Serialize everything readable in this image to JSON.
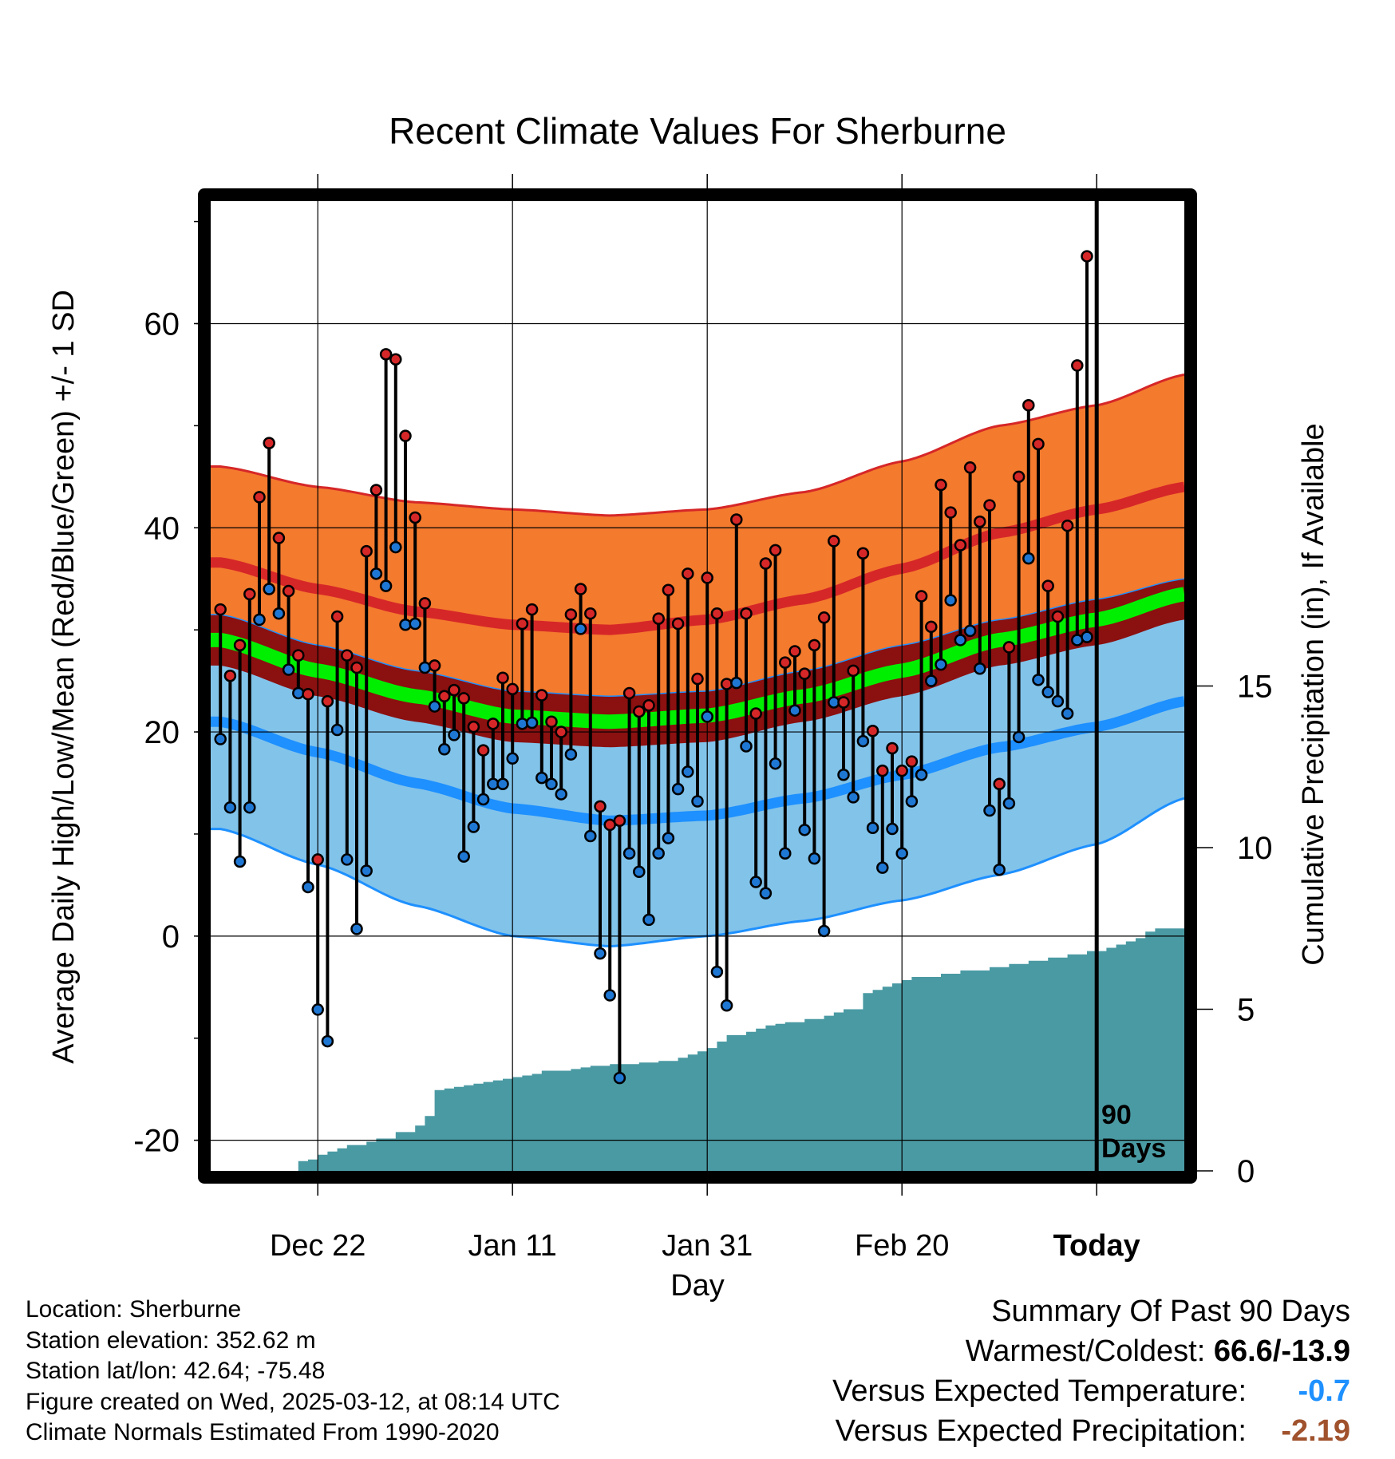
{
  "chart_data": {
    "type": "line",
    "title": "Recent Climate Values For Sherburne",
    "xlabel": "Day",
    "ylabel": "Average Daily High/Low/Mean (Red/Blue/Green) +/- 1 SD",
    "y2label": "Cumulative Precipitation (in), If Available",
    "x_tick_labels": [
      "Dec 22",
      "Jan 11",
      "Jan 31",
      "Feb 20",
      "Today"
    ],
    "x_tick_days": [
      10,
      30,
      50,
      70,
      90
    ],
    "xlim": [
      -1,
      99
    ],
    "ylim": [
      -23,
      72
    ],
    "y_ticks": [
      -20,
      0,
      20,
      40,
      60
    ],
    "y2lim": [
      0,
      30
    ],
    "y2_ticks": [
      0,
      5,
      10,
      15
    ],
    "grid": true,
    "today_marker": {
      "day": 90,
      "label_line1": "90",
      "label_line2": "Days"
    },
    "normals": {
      "high_mean": [
        [
          0,
          36.6
        ],
        [
          10,
          34.0
        ],
        [
          20,
          31.8
        ],
        [
          30,
          30.5
        ],
        [
          40,
          30.0
        ],
        [
          50,
          31.0
        ],
        [
          60,
          33.0
        ],
        [
          70,
          36.0
        ],
        [
          80,
          39.5
        ],
        [
          90,
          41.8
        ],
        [
          99,
          44.0
        ]
      ],
      "high_upper": [
        [
          0,
          46.0
        ],
        [
          10,
          44.0
        ],
        [
          20,
          42.5
        ],
        [
          30,
          41.8
        ],
        [
          40,
          41.2
        ],
        [
          50,
          41.8
        ],
        [
          60,
          43.5
        ],
        [
          70,
          46.5
        ],
        [
          80,
          50.0
        ],
        [
          90,
          52.0
        ],
        [
          99,
          55.0
        ]
      ],
      "mean": [
        [
          0,
          29.0
        ],
        [
          10,
          26.0
        ],
        [
          20,
          23.5
        ],
        [
          30,
          21.5
        ],
        [
          40,
          21.0
        ],
        [
          50,
          21.6
        ],
        [
          60,
          23.5
        ],
        [
          70,
          26.0
        ],
        [
          80,
          29.0
        ],
        [
          90,
          31.0
        ],
        [
          99,
          33.5
        ]
      ],
      "mean_upper": [
        [
          0,
          31.5
        ],
        [
          10,
          28.5
        ],
        [
          20,
          26.0
        ],
        [
          30,
          24.0
        ],
        [
          40,
          23.5
        ],
        [
          50,
          24.0
        ],
        [
          60,
          26.0
        ],
        [
          70,
          28.5
        ],
        [
          80,
          31.0
        ],
        [
          90,
          33.0
        ],
        [
          99,
          35.0
        ]
      ],
      "mean_lower": [
        [
          0,
          26.5
        ],
        [
          10,
          23.5
        ],
        [
          20,
          21.0
        ],
        [
          30,
          19.0
        ],
        [
          40,
          18.5
        ],
        [
          50,
          19.0
        ],
        [
          60,
          21.0
        ],
        [
          70,
          23.5
        ],
        [
          80,
          26.5
        ],
        [
          90,
          28.5
        ],
        [
          99,
          31.0
        ]
      ],
      "low_mean": [
        [
          0,
          21.0
        ],
        [
          10,
          18.0
        ],
        [
          20,
          15.0
        ],
        [
          30,
          12.5
        ],
        [
          40,
          11.3
        ],
        [
          50,
          11.8
        ],
        [
          60,
          13.5
        ],
        [
          70,
          15.8
        ],
        [
          80,
          18.5
        ],
        [
          90,
          20.5
        ],
        [
          99,
          23.0
        ]
      ],
      "low_lower": [
        [
          0,
          10.5
        ],
        [
          10,
          7.0
        ],
        [
          20,
          3.0
        ],
        [
          30,
          0.0
        ],
        [
          40,
          -1.0
        ],
        [
          50,
          0.0
        ],
        [
          60,
          1.5
        ],
        [
          70,
          3.5
        ],
        [
          80,
          6.0
        ],
        [
          90,
          9.0
        ],
        [
          99,
          13.5
        ]
      ]
    },
    "series": [
      {
        "name": "High",
        "color": "#d62728",
        "values": [
          32.0,
          25.5,
          28.5,
          33.5,
          43.0,
          48.3,
          39.0,
          33.8,
          27.5,
          23.7,
          7.5,
          23.0,
          31.3,
          27.5,
          26.3,
          37.7,
          43.7,
          57.0,
          56.5,
          49.0,
          41.0,
          32.6,
          26.5,
          23.5,
          24.1,
          23.3,
          20.5,
          18.2,
          20.8,
          25.3,
          24.2,
          30.6,
          32.0,
          23.6,
          21.0,
          20.0,
          31.5,
          34.0,
          31.6,
          12.7,
          10.9,
          11.3,
          23.8,
          22.0,
          22.6,
          31.1,
          33.9,
          30.6,
          35.5,
          25.2,
          35.1,
          31.6,
          24.7,
          40.8,
          31.6,
          21.8,
          36.5,
          37.8,
          26.8,
          27.9,
          25.7,
          28.5,
          31.2,
          38.7,
          22.9,
          26.0,
          37.5,
          20.1,
          16.2,
          18.4,
          16.2,
          17.1,
          33.3,
          30.3,
          44.2,
          41.5,
          38.3,
          45.9,
          40.6,
          42.2,
          14.9,
          28.3,
          45.0,
          52.0,
          48.2,
          34.3,
          31.3,
          40.2,
          55.9,
          66.6
        ]
      },
      {
        "name": "Low",
        "color": "#1f77d4",
        "values": [
          19.3,
          12.6,
          7.3,
          12.6,
          31.0,
          34.0,
          31.6,
          26.1,
          23.8,
          4.8,
          -7.2,
          -10.3,
          20.2,
          7.5,
          0.7,
          6.4,
          35.5,
          34.3,
          38.1,
          30.5,
          30.6,
          26.3,
          22.5,
          18.3,
          19.7,
          7.8,
          10.7,
          13.4,
          14.9,
          14.9,
          17.4,
          20.8,
          20.9,
          15.5,
          14.9,
          13.9,
          17.8,
          30.1,
          9.8,
          -1.7,
          -5.8,
          -13.9,
          8.1,
          6.3,
          1.6,
          8.1,
          9.6,
          14.4,
          16.1,
          13.2,
          21.5,
          -3.5,
          -6.8,
          24.8,
          18.6,
          5.3,
          4.2,
          16.9,
          8.1,
          22.1,
          10.4,
          7.6,
          0.5,
          22.9,
          15.8,
          13.6,
          19.1,
          10.6,
          6.7,
          10.5,
          8.1,
          13.2,
          15.8,
          25.0,
          26.6,
          32.9,
          29.0,
          29.9,
          26.2,
          12.3,
          6.5,
          13.0,
          19.5,
          37.0,
          25.1,
          23.9,
          23.0,
          21.8,
          29.0,
          29.3
        ]
      }
    ],
    "precipitation_cumulative": [
      0.0,
      0.0,
      0.0,
      0.0,
      0.0,
      0.0,
      0.0,
      0.0,
      0.3,
      0.35,
      0.5,
      0.6,
      0.7,
      0.8,
      0.8,
      0.9,
      1.0,
      1.0,
      1.2,
      1.2,
      1.4,
      1.7,
      2.5,
      2.55,
      2.6,
      2.65,
      2.7,
      2.75,
      2.8,
      2.85,
      2.9,
      2.95,
      3.0,
      3.1,
      3.1,
      3.1,
      3.15,
      3.2,
      3.25,
      3.25,
      3.3,
      3.3,
      3.3,
      3.35,
      3.35,
      3.4,
      3.4,
      3.5,
      3.6,
      3.7,
      3.8,
      4.0,
      4.2,
      4.2,
      4.3,
      4.4,
      4.5,
      4.55,
      4.6,
      4.6,
      4.7,
      4.7,
      4.8,
      4.9,
      5.0,
      5.0,
      5.5,
      5.6,
      5.7,
      5.8,
      5.9,
      6.0,
      6.0,
      6.0,
      6.1,
      6.1,
      6.2,
      6.2,
      6.2,
      6.3,
      6.3,
      6.4,
      6.4,
      6.5,
      6.5,
      6.6,
      6.6,
      6.7,
      6.7,
      6.8,
      6.8,
      6.9,
      7.0,
      7.1,
      7.2,
      7.4,
      7.5,
      7.5,
      7.5,
      7.5
    ],
    "colors": {
      "high_band": "#f47a2e",
      "high_line": "#d62728",
      "mean_band": "#00ee00",
      "mean_dark_band": "#8b1010",
      "low_band": "#82c3ea",
      "low_line": "#1e90ff",
      "precip_fill": "#4a9aa3"
    }
  },
  "info": {
    "location": "Location: Sherburne",
    "elevation": "Station elevation: 352.62 m",
    "latlon": "Station lat/lon: 42.64; -75.48",
    "created": "Figure created on Wed, 2025-03-12, at 08:14 UTC",
    "normals": "Climate Normals Estimated From 1990-2020"
  },
  "summary": {
    "heading": "Summary Of Past 90 Days",
    "warm_cold_label": "Warmest/Coldest: ",
    "warm_cold_value": "66.6/-13.9",
    "temp_label": "Versus Expected Temperature:",
    "temp_value": "-0.7",
    "precip_label": "Versus Expected Precipitation:",
    "precip_value": "-2.19"
  }
}
